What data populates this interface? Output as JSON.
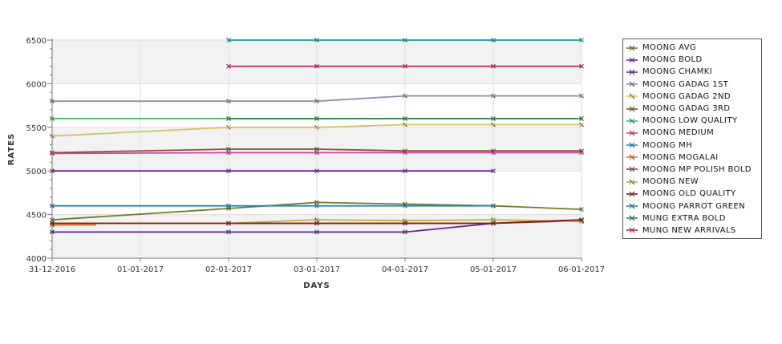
{
  "chart_data": {
    "type": "line",
    "title": "",
    "xlabel": "DAYS",
    "ylabel": "RATES",
    "categories": [
      "31-12-2016",
      "01-01-2017",
      "02-01-2017",
      "03-01-2017",
      "04-01-2017",
      "05-01-2017",
      "06-01-2017"
    ],
    "ylim": [
      4000,
      6500
    ],
    "yticks": [
      4000,
      4500,
      5000,
      5500,
      6000,
      6500
    ],
    "grid": true,
    "legend_position": "right",
    "series": [
      {
        "name": "MOONG AVG",
        "color": "#6b7d2a",
        "values": [
          4440,
          null,
          4570,
          4640,
          4620,
          4600,
          4560
        ]
      },
      {
        "name": "MOONG BOLD",
        "color": "#7a1fa3",
        "values": [
          5000,
          null,
          5000,
          5000,
          5000,
          5000,
          null
        ]
      },
      {
        "name": "MOONG CHAMKI",
        "color": "#5a2a86",
        "values": [
          4300,
          null,
          4300,
          4300,
          4300,
          4400,
          4440
        ]
      },
      {
        "name": "MOONG GADAG 1ST",
        "color": "#9b86b0",
        "values": [
          5800,
          null,
          5800,
          5800,
          5860,
          5860,
          5860
        ]
      },
      {
        "name": "MOONG GADAG 2ND",
        "color": "#d6c06a",
        "values": [
          5400,
          null,
          5500,
          5500,
          5530,
          5530,
          5530
        ]
      },
      {
        "name": "MOONG GADAG 3RD",
        "color": "#7a5a2a",
        "values": [
          5210,
          null,
          5250,
          5250,
          5230,
          5230,
          5230
        ]
      },
      {
        "name": "MOONG LOW QUALITY",
        "color": "#3fbf5f",
        "values": [
          5600,
          null,
          5600,
          5600,
          5600,
          5600,
          5600
        ]
      },
      {
        "name": "MOONG MEDIUM",
        "color": "#d03ea0",
        "values": [
          5200,
          null,
          5210,
          5210,
          5210,
          5210,
          5210
        ]
      },
      {
        "name": "MOONG MH",
        "color": "#1f8ac6",
        "values": [
          4600,
          null,
          4600,
          4600,
          4600,
          4600,
          null
        ]
      },
      {
        "name": "MOONG MOGALAI",
        "color": "#e0742a",
        "values": [
          4380,
          null,
          null,
          null,
          null,
          null,
          null
        ]
      },
      {
        "name": "MOONG MP POLISH BOLD",
        "color": "#a0336a",
        "values": [
          4400,
          null,
          4400,
          4400,
          4400,
          4400,
          4430
        ]
      },
      {
        "name": "MOONG NEW",
        "color": "#b7b340",
        "values": [
          4400,
          null,
          4400,
          4440,
          4430,
          4440,
          4420
        ]
      },
      {
        "name": "MOONG OLD QUALITY",
        "color": "#8a1a1a",
        "values": [
          4400,
          null,
          4400,
          4400,
          4400,
          4400,
          4440
        ]
      },
      {
        "name": "MOONG PARROT GREEN",
        "color": "#1f96a6",
        "values": [
          null,
          null,
          6500,
          6500,
          6500,
          6500,
          6500
        ]
      },
      {
        "name": "MUNG EXTRA BOLD",
        "color": "#2e8a4a",
        "values": [
          null,
          null,
          5600,
          5600,
          5600,
          5600,
          5600
        ]
      },
      {
        "name": "MUNG NEW ARRIVALS",
        "color": "#c8206a",
        "values": [
          null,
          null,
          6200,
          6200,
          6200,
          6200,
          6200
        ]
      }
    ]
  }
}
